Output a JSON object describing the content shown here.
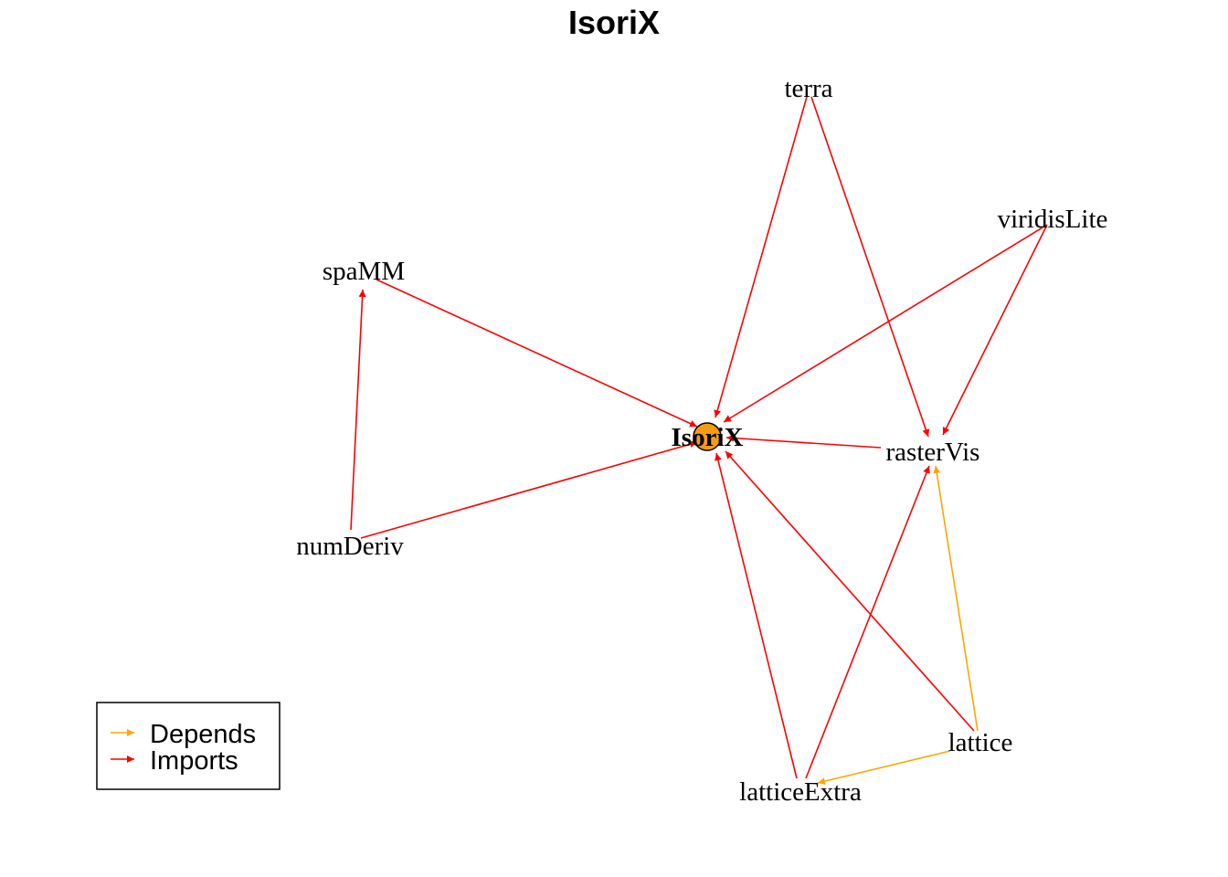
{
  "title": "IsoriX",
  "colors": {
    "depends": "#FFA500",
    "imports": "#FF0000",
    "focal_node_fill": "#F39C12"
  },
  "nodes": [
    {
      "id": "IsoriX",
      "label": "IsoriX",
      "focal": true
    },
    {
      "id": "terra",
      "label": "terra"
    },
    {
      "id": "viridisLite",
      "label": "viridisLite"
    },
    {
      "id": "spaMM",
      "label": "spaMM"
    },
    {
      "id": "rasterVis",
      "label": "rasterVis"
    },
    {
      "id": "numDeriv",
      "label": "numDeriv"
    },
    {
      "id": "lattice",
      "label": "lattice"
    },
    {
      "id": "latticeExtra",
      "label": "latticeExtra"
    }
  ],
  "edges": [
    {
      "from": "terra",
      "to": "IsoriX",
      "type": "Imports"
    },
    {
      "from": "terra",
      "to": "rasterVis",
      "type": "Imports"
    },
    {
      "from": "viridisLite",
      "to": "IsoriX",
      "type": "Imports"
    },
    {
      "from": "viridisLite",
      "to": "rasterVis",
      "type": "Imports"
    },
    {
      "from": "spaMM",
      "to": "IsoriX",
      "type": "Imports"
    },
    {
      "from": "numDeriv",
      "to": "spaMM",
      "type": "Imports"
    },
    {
      "from": "numDeriv",
      "to": "IsoriX",
      "type": "Imports"
    },
    {
      "from": "rasterVis",
      "to": "IsoriX",
      "type": "Imports"
    },
    {
      "from": "latticeExtra",
      "to": "IsoriX",
      "type": "Imports"
    },
    {
      "from": "latticeExtra",
      "to": "rasterVis",
      "type": "Imports"
    },
    {
      "from": "lattice",
      "to": "IsoriX",
      "type": "Imports"
    },
    {
      "from": "lattice",
      "to": "rasterVis",
      "type": "Depends"
    },
    {
      "from": "lattice",
      "to": "latticeExtra",
      "type": "Depends"
    }
  ],
  "legend": {
    "items": [
      {
        "label": "Depends",
        "type": "Depends"
      },
      {
        "label": "Imports",
        "type": "Imports"
      }
    ]
  }
}
